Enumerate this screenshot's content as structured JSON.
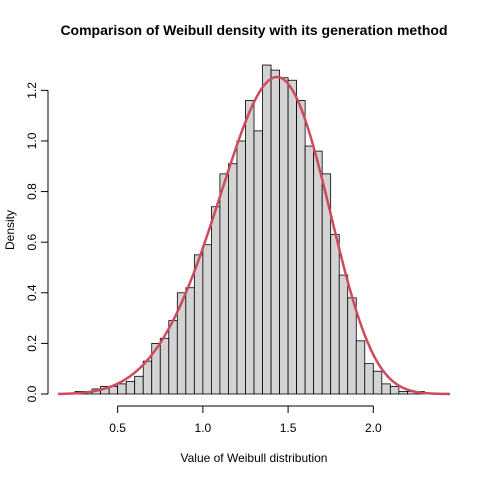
{
  "chart_data": {
    "type": "bar",
    "title": "Comparison of Weibull density with its generation method",
    "xlabel": "Value of Weibull distribution",
    "ylabel": "Density",
    "xlim": [
      0.15,
      2.45
    ],
    "ylim": [
      0,
      1.32
    ],
    "x_ticks": [
      0.5,
      1.0,
      1.5,
      2.0
    ],
    "x_tick_labels": [
      "0.5",
      "1.0",
      "1.5",
      "2.0"
    ],
    "y_ticks": [
      0.0,
      0.2,
      0.4,
      0.6,
      0.8,
      1.0,
      1.2
    ],
    "y_tick_labels": [
      "0.0",
      "0.2",
      "0.4",
      "0.6",
      "0.8",
      "1.0",
      "1.2"
    ],
    "grid": false,
    "series": [
      {
        "type": "histogram",
        "bar_color": "#d3d3d3",
        "border_color": "#000000",
        "bin_edges": [
          0.25,
          0.3,
          0.35,
          0.4,
          0.45,
          0.5,
          0.55,
          0.6,
          0.65,
          0.7,
          0.75,
          0.8,
          0.85,
          0.9,
          0.95,
          1.0,
          1.05,
          1.1,
          1.15,
          1.2,
          1.25,
          1.3,
          1.35,
          1.4,
          1.45,
          1.5,
          1.55,
          1.6,
          1.65,
          1.7,
          1.75,
          1.8,
          1.85,
          1.9,
          1.95,
          2.0,
          2.05,
          2.1,
          2.15,
          2.2,
          2.25,
          2.3
        ],
        "values": [
          0.01,
          0.01,
          0.02,
          0.03,
          0.03,
          0.04,
          0.05,
          0.07,
          0.13,
          0.2,
          0.22,
          0.29,
          0.4,
          0.42,
          0.55,
          0.59,
          0.74,
          0.87,
          0.91,
          1.0,
          1.16,
          1.04,
          1.3,
          1.28,
          1.25,
          1.24,
          1.16,
          0.98,
          0.96,
          0.87,
          0.63,
          0.47,
          0.38,
          0.21,
          0.12,
          0.09,
          0.04,
          0.03,
          0.01,
          0.01,
          0.01
        ]
      },
      {
        "type": "density_line",
        "color": "#cc4c5c",
        "shape": 5,
        "scale": 1.5
      }
    ]
  }
}
